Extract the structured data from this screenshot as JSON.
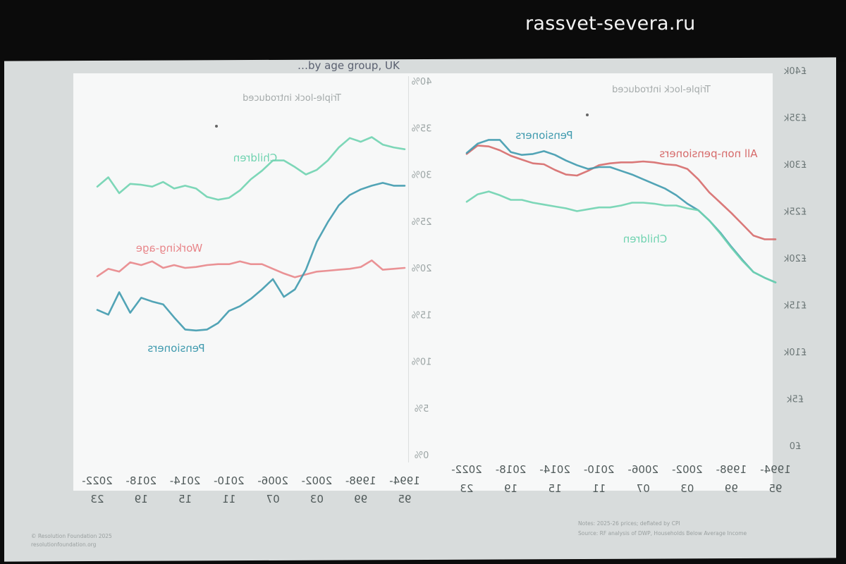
{
  "watermark": "rassvet-severa.ru",
  "title_fragment": "…by age group, UK",
  "left_panel": {
    "annotation": "Triple-lock introduced",
    "y_ticks": [
      "0%",
      "5%",
      "10%",
      "15%",
      "20%",
      "25%",
      "30%",
      "35%",
      "40%"
    ]
  },
  "right_panel": {
    "annotation": "Triple-lock introduced",
    "y_ticks": [
      "£0",
      "£5k",
      "£10k",
      "£15k",
      "£20k",
      "£25k",
      "£30k",
      "£35k",
      "£40k"
    ]
  },
  "x_ticks_top": [
    "1994-",
    "1998-",
    "2002-",
    "2006-",
    "2010-",
    "2014-",
    "2018-",
    "2022-"
  ],
  "x_ticks_bottom": [
    "95",
    "99",
    "03",
    "07",
    "11",
    "15",
    "19",
    "23"
  ],
  "footer_left": [
    "© Resolution Foundation 2025",
    "resolutionfoundation.org"
  ],
  "footer_right": [
    "Notes: 2025-26 prices; deflated by CPI",
    "Source: RF analysis of DWP, Households Below Average Income"
  ],
  "colors": {
    "children": "#6fd3b0",
    "working_age": "#e8868a",
    "pensioners": "#3f9aae",
    "all_non_pensioners": "#d66a6a"
  },
  "chart_data": [
    {
      "type": "line",
      "title": "",
      "ylabel": "",
      "ylim": [
        0,
        40
      ],
      "x": [
        "1994-95",
        "1995-96",
        "1996-97",
        "1997-98",
        "1998-99",
        "1999-00",
        "2000-01",
        "2001-02",
        "2002-03",
        "2003-04",
        "2004-05",
        "2005-06",
        "2006-07",
        "2007-08",
        "2008-09",
        "2009-10",
        "2010-11",
        "2011-12",
        "2012-13",
        "2013-14",
        "2014-15",
        "2015-16",
        "2016-17",
        "2017-18",
        "2018-19",
        "2019-20",
        "2020-21",
        "2021-22",
        "2022-23"
      ],
      "series": [
        {
          "name": "Children",
          "values": [
            32.7,
            32.9,
            33.2,
            34.0,
            33.5,
            33.9,
            32.9,
            31.5,
            30.5,
            30.0,
            30.8,
            31.5,
            31.5,
            30.4,
            29.5,
            28.3,
            27.5,
            27.3,
            27.6,
            28.5,
            28.8,
            28.5,
            29.2,
            28.7,
            28.9,
            29.0,
            28.0,
            29.7,
            28.7
          ]
        },
        {
          "name": "Working-age",
          "values": [
            20.0,
            19.9,
            19.8,
            20.8,
            20.1,
            19.9,
            19.8,
            19.7,
            19.6,
            19.3,
            19.0,
            19.4,
            19.9,
            20.4,
            20.4,
            20.7,
            20.4,
            20.4,
            20.3,
            20.1,
            20.0,
            20.3,
            20.0,
            20.7,
            20.3,
            20.6,
            19.6,
            19.9,
            19.1
          ]
        },
        {
          "name": "Pensioners",
          "values": [
            28.8,
            28.8,
            29.1,
            28.8,
            28.4,
            27.8,
            26.7,
            24.9,
            22.8,
            19.8,
            17.7,
            16.9,
            18.8,
            17.7,
            16.7,
            15.9,
            15.4,
            14.1,
            13.4,
            13.3,
            13.4,
            14.7,
            16.1,
            16.4,
            16.8,
            15.2,
            17.4,
            15.0,
            15.5
          ]
        }
      ]
    },
    {
      "type": "line",
      "title": "",
      "ylabel": "",
      "ylim": [
        0,
        40
      ],
      "x": [
        "1994-95",
        "1995-96",
        "1996-97",
        "1997-98",
        "1998-99",
        "1999-00",
        "2000-01",
        "2001-02",
        "2002-03",
        "2003-04",
        "2004-05",
        "2005-06",
        "2006-07",
        "2007-08",
        "2008-09",
        "2009-10",
        "2010-11",
        "2011-12",
        "2012-13",
        "2013-14",
        "2014-15",
        "2015-16",
        "2016-17",
        "2017-18",
        "2018-19",
        "2019-20",
        "2020-21",
        "2021-22",
        "2022-23"
      ],
      "series": [
        {
          "name": "All non-pensioners",
          "values": [
            22.0,
            22.0,
            22.4,
            23.6,
            24.8,
            25.9,
            27.0,
            28.4,
            29.5,
            29.9,
            30.0,
            30.2,
            30.3,
            30.2,
            30.2,
            30.1,
            29.9,
            29.3,
            28.8,
            28.9,
            29.4,
            30.0,
            30.1,
            30.5,
            30.9,
            31.5,
            31.9,
            32.0,
            31.1
          ]
        },
        {
          "name": "Pensioners",
          "values": [
            17.4,
            17.9,
            18.5,
            19.8,
            21.2,
            22.7,
            24.0,
            25.1,
            25.8,
            26.7,
            27.4,
            27.9,
            28.4,
            28.9,
            29.3,
            29.7,
            29.7,
            29.5,
            29.9,
            30.4,
            31.0,
            31.4,
            31.1,
            31.0,
            31.3,
            32.6,
            32.6,
            32.2,
            31.2
          ]
        },
        {
          "name": "Children",
          "values": [
            17.4,
            17.9,
            18.5,
            19.7,
            21.1,
            22.6,
            24.0,
            25.1,
            25.3,
            25.6,
            25.6,
            25.8,
            25.9,
            25.9,
            25.6,
            25.4,
            25.4,
            25.2,
            25.0,
            25.3,
            25.5,
            25.7,
            25.9,
            26.2,
            26.2,
            26.7,
            27.1,
            26.8,
            26.0
          ]
        }
      ]
    }
  ]
}
